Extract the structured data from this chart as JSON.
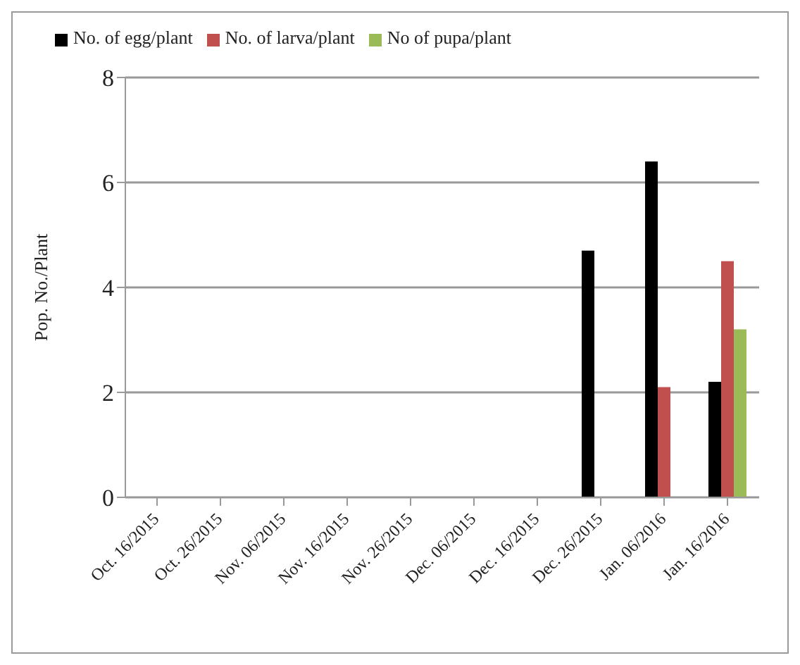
{
  "chart_data": {
    "type": "bar",
    "ylabel": "Pop. No./Plant",
    "categories": [
      "Oct. 16/2015",
      "Oct. 26/2015",
      "Nov. 06/2015",
      "Nov. 16/2015",
      "Nov. 26/2015",
      "Dec. 06/2015",
      "Dec. 16/2015",
      "Dec. 26/2015",
      "Jan. 06/2016",
      "Jan. 16/2016"
    ],
    "series": [
      {
        "name": "No. of egg/plant",
        "color": "#000000",
        "values": [
          0,
          0,
          0,
          0,
          0,
          0,
          0,
          4.7,
          6.4,
          2.2
        ]
      },
      {
        "name": "No. of larva/plant",
        "color": "#c0504d",
        "values": [
          0,
          0,
          0,
          0,
          0,
          0,
          0,
          0,
          2.1,
          4.5
        ]
      },
      {
        "name": "No of pupa/plant",
        "color": "#9bbb59",
        "values": [
          0,
          0,
          0,
          0,
          0,
          0,
          0,
          0,
          0,
          3.2
        ]
      }
    ],
    "ylim": [
      0,
      8
    ],
    "yticks": [
      0,
      2,
      4,
      6,
      8
    ],
    "grid": "y",
    "legend": "top left"
  }
}
